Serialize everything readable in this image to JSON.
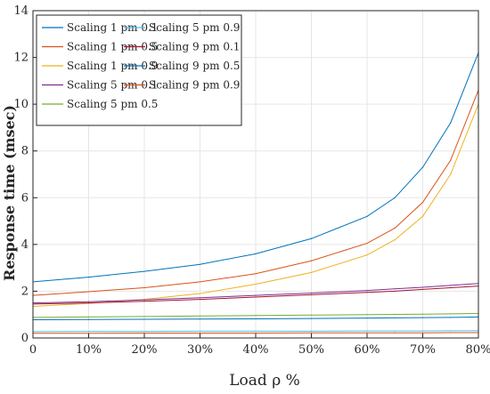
{
  "chart_data": {
    "type": "line",
    "title": "",
    "xlabel": "Load ρ %",
    "ylabel": "Response time (msec)",
    "xlim": [
      0,
      80
    ],
    "ylim": [
      0,
      14
    ],
    "x_ticks": [
      0,
      10,
      20,
      30,
      40,
      50,
      60,
      70,
      80
    ],
    "x_tick_labels": [
      "0",
      "10%",
      "20%",
      "30%",
      "40%",
      "50%",
      "60%",
      "70%",
      "80%"
    ],
    "y_ticks": [
      0,
      2,
      4,
      6,
      8,
      10,
      12,
      14
    ],
    "y_tick_labels": [
      "0",
      "2",
      "4",
      "6",
      "8",
      "10",
      "12",
      "14"
    ],
    "grid": true,
    "legend_position": "top-left",
    "legend_columns": 2,
    "x": [
      0,
      10,
      20,
      30,
      40,
      50,
      60,
      65,
      70,
      75,
      80
    ],
    "series": [
      {
        "name": "Scaling 1 pm 0.1",
        "color": "#0072BD",
        "values": [
          2.4,
          2.6,
          2.85,
          3.15,
          3.6,
          4.25,
          5.2,
          6.0,
          7.3,
          9.2,
          12.2
        ]
      },
      {
        "name": "Scaling 1 pm 0.5",
        "color": "#D95319",
        "values": [
          1.82,
          1.98,
          2.15,
          2.4,
          2.75,
          3.3,
          4.05,
          4.7,
          5.8,
          7.6,
          10.6
        ]
      },
      {
        "name": "Scaling 1 pm 0.9",
        "color": "#EDB120",
        "values": [
          1.35,
          1.48,
          1.65,
          1.9,
          2.3,
          2.8,
          3.55,
          4.2,
          5.2,
          7.0,
          10.0
        ]
      },
      {
        "name": "Scaling 5 pm 0.1",
        "color": "#7E2F8E",
        "values": [
          1.5,
          1.55,
          1.63,
          1.72,
          1.82,
          1.92,
          2.03,
          2.1,
          2.17,
          2.25,
          2.33
        ]
      },
      {
        "name": "Scaling 5 pm 0.5",
        "color": "#77AC30",
        "values": [
          0.88,
          0.9,
          0.92,
          0.94,
          0.96,
          0.98,
          1.0,
          1.01,
          1.02,
          1.03,
          1.05
        ]
      },
      {
        "name": "Scaling 5 pm 0.9",
        "color": "#4DBEEE",
        "values": [
          0.27,
          0.28,
          0.28,
          0.29,
          0.29,
          0.29,
          0.3,
          0.3,
          0.3,
          0.31,
          0.31
        ]
      },
      {
        "name": "Scaling 9 pm 0.1",
        "color": "#A2142F",
        "values": [
          1.45,
          1.5,
          1.57,
          1.65,
          1.75,
          1.85,
          1.95,
          2.0,
          2.08,
          2.15,
          2.22
        ]
      },
      {
        "name": "Scaling 9 pm 0.5",
        "color": "#0072BD",
        "values": [
          0.78,
          0.79,
          0.8,
          0.81,
          0.82,
          0.83,
          0.85,
          0.86,
          0.87,
          0.88,
          0.9
        ]
      },
      {
        "name": "Scaling 9 pm 0.9",
        "color": "#D95319",
        "values": [
          0.2,
          0.2,
          0.21,
          0.21,
          0.21,
          0.22,
          0.22,
          0.22,
          0.22,
          0.23,
          0.23
        ]
      }
    ]
  }
}
